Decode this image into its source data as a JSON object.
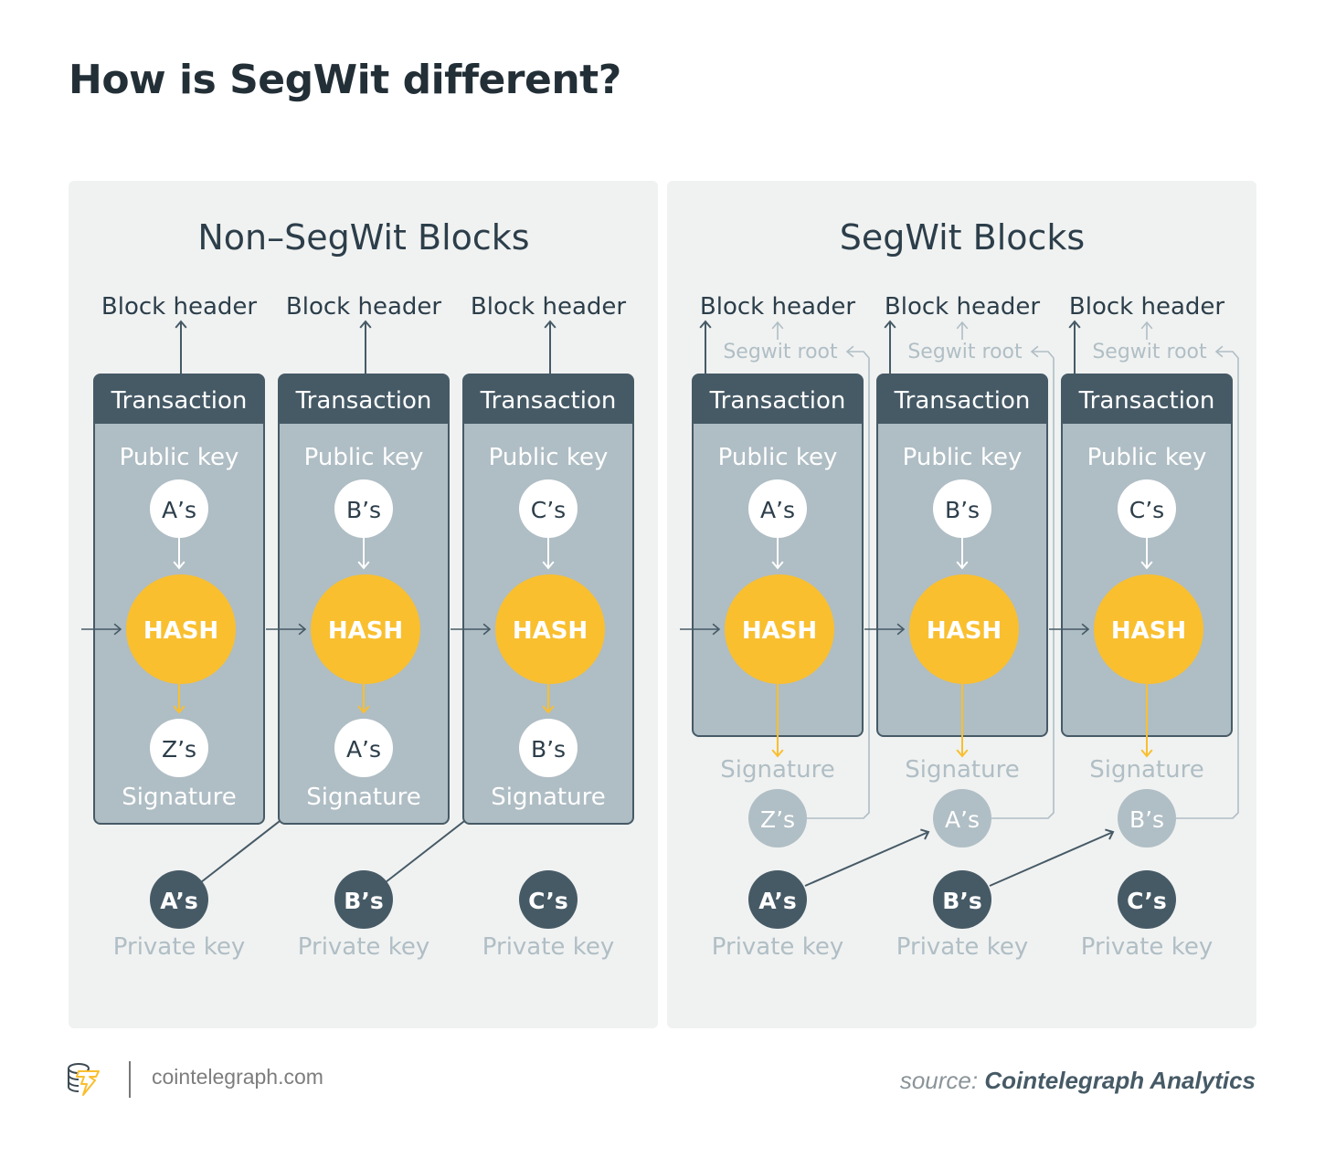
{
  "title": "How is SegWit different?",
  "colors": {
    "panel": "#f0f2f1",
    "dark": "#465a66",
    "box": "#afbdc4",
    "hash": "#f9bf2f",
    "muted": "#b0bec5",
    "text": "#2c3e4a"
  },
  "panels": [
    {
      "title": "Non–SegWit Blocks",
      "segwit": false,
      "blocks": [
        {
          "header": "Block header",
          "transaction": "Transaction",
          "public_key_label": "Public key",
          "public_key": "A’s",
          "hash": "HASH",
          "signature_owner": "Z’s",
          "signature_label": "Signature",
          "private_key": "A’s",
          "private_key_label": "Private key"
        },
        {
          "header": "Block header",
          "transaction": "Transaction",
          "public_key_label": "Public key",
          "public_key": "B’s",
          "hash": "HASH",
          "signature_owner": "A’s",
          "signature_label": "Signature",
          "private_key": "B’s",
          "private_key_label": "Private key"
        },
        {
          "header": "Block header",
          "transaction": "Transaction",
          "public_key_label": "Public key",
          "public_key": "C’s",
          "hash": "HASH",
          "signature_owner": "B’s",
          "signature_label": "Signature",
          "private_key": "C’s",
          "private_key_label": "Private key"
        }
      ]
    },
    {
      "title": "SegWit Blocks",
      "segwit": true,
      "blocks": [
        {
          "header": "Block header",
          "segwit_root": "Segwit root",
          "transaction": "Transaction",
          "public_key_label": "Public key",
          "public_key": "A’s",
          "hash": "HASH",
          "signature_owner": "Z’s",
          "signature_label": "Signature",
          "private_key": "A’s",
          "private_key_label": "Private key"
        },
        {
          "header": "Block header",
          "segwit_root": "Segwit root",
          "transaction": "Transaction",
          "public_key_label": "Public key",
          "public_key": "B’s",
          "hash": "HASH",
          "signature_owner": "A’s",
          "signature_label": "Signature",
          "private_key": "B’s",
          "private_key_label": "Private key"
        },
        {
          "header": "Block header",
          "segwit_root": "Segwit root",
          "transaction": "Transaction",
          "public_key_label": "Public key",
          "public_key": "C’s",
          "hash": "HASH",
          "signature_owner": "B’s",
          "signature_label": "Signature",
          "private_key": "C’s",
          "private_key_label": "Private key"
        }
      ]
    }
  ],
  "footer": {
    "site": "cointelegraph.com",
    "source_prefix": "source:",
    "source_name": "Cointelegraph Analytics"
  }
}
